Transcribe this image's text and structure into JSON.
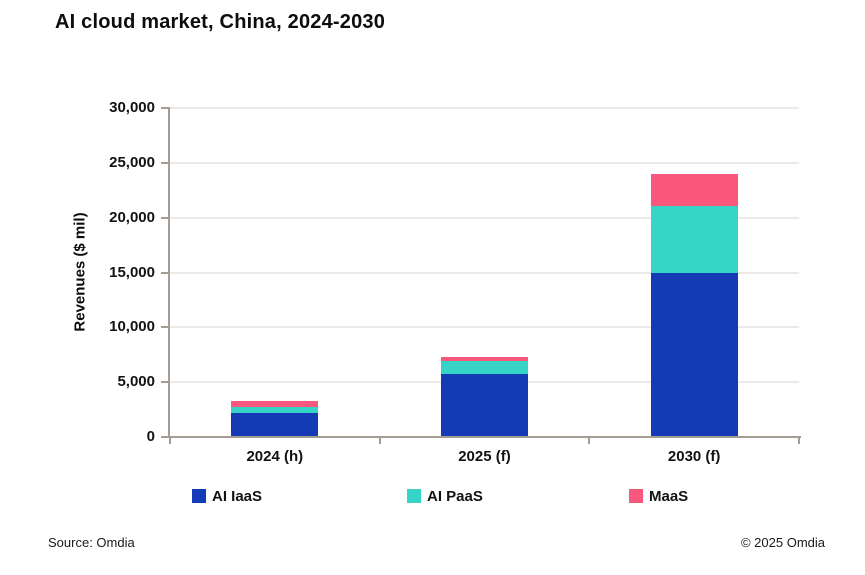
{
  "title": "AI cloud market, China, 2024-2030",
  "chart_data": {
    "type": "bar",
    "stacked": true,
    "title": "AI cloud market, China, 2024-2030",
    "categories": [
      "2024 (h)",
      "2025 (f)",
      "2030 (f)"
    ],
    "series": [
      {
        "name": "AI IaaS",
        "color": "#153AB5",
        "values": [
          2200,
          5750,
          15000
        ]
      },
      {
        "name": "AI PaaS",
        "color": "#36D4C6",
        "values": [
          550,
          1150,
          6100
        ]
      },
      {
        "name": "MaaS",
        "color": "#F9577D",
        "values": [
          500,
          400,
          2900
        ]
      }
    ],
    "totals": [
      3250,
      7300,
      24000
    ],
    "xlabel": "",
    "ylabel": "Revenues ($ mil)",
    "ylim": [
      0,
      30000
    ],
    "ytick_step": 5000,
    "ytick_labels": [
      "0",
      "5,000",
      "10,000",
      "15,000",
      "20,000",
      "25,000",
      "30,000"
    ],
    "grid": true,
    "legend_position": "bottom"
  },
  "footer": {
    "source": "Source: Omdia",
    "copyright": "© 2025 Omdia"
  },
  "colors": {
    "axis": "#A49C92",
    "gridline": "#ECEAE7",
    "text": "#121212",
    "background": "#FFFFFF"
  }
}
